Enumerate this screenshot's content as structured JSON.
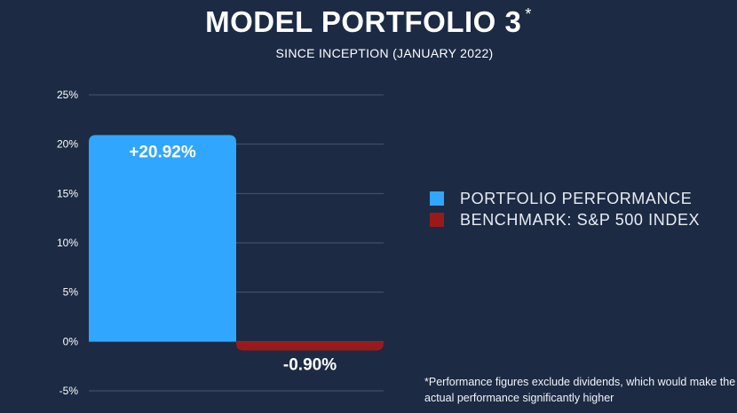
{
  "title": "MODEL PORTFOLIO 3",
  "title_mark": "*",
  "subtitle": "SINCE INCEPTION (JANUARY 2022)",
  "footnote": "*Performance figures exclude dividends, which would make the actual performance significantly higher",
  "chart_data": {
    "type": "bar",
    "categories": [
      "PORTFOLIO PERFORMANCE",
      "BENCHMARK: S&P 500 INDEX"
    ],
    "values": [
      20.92,
      -0.9
    ],
    "data_labels": [
      "+20.92%",
      "-0.90%"
    ],
    "colors": [
      "#30a6ff",
      "#9a1a1a"
    ],
    "y_ticks": [
      "25%",
      "20%",
      "15%",
      "10%",
      "5%",
      "0%",
      "-5%"
    ],
    "y_tick_values": [
      25,
      20,
      15,
      10,
      5,
      0,
      -5
    ],
    "ylim": [
      -5,
      25
    ],
    "grid": true,
    "legend": {
      "placement": "right",
      "items": [
        {
          "label": "PORTFOLIO PERFORMANCE",
          "color": "#30a6ff"
        },
        {
          "label": "BENCHMARK: S&P 500 INDEX",
          "color": "#9a1a1a"
        }
      ]
    }
  }
}
